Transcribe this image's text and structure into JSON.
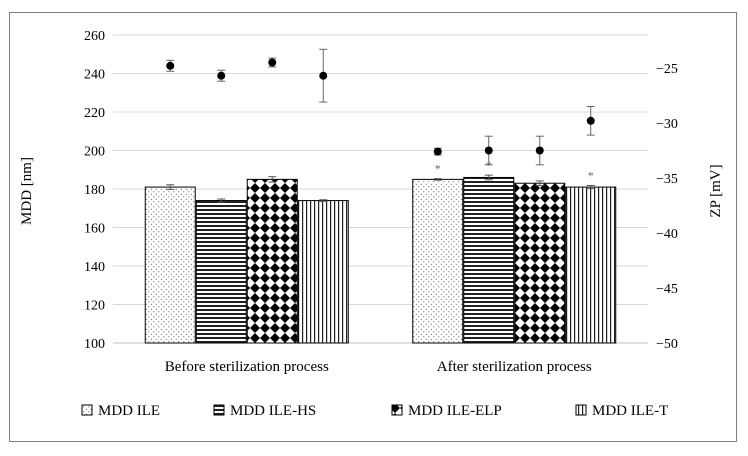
{
  "chart_data": {
    "type": "bar",
    "categories": [
      "Before sterilization process",
      "After sterilization process"
    ],
    "ylabel": "MDD [nm]",
    "y2label": "ZP [mV]",
    "ylim": [
      100,
      260
    ],
    "y_ticks": [
      100,
      120,
      140,
      160,
      180,
      200,
      220,
      240,
      260
    ],
    "y2lim": [
      -50,
      -22
    ],
    "y2_ticks": [
      -50,
      -45,
      -40,
      -35,
      -30,
      -25
    ],
    "y2_tick_labels": [
      "−50",
      "−45",
      "−40",
      "−35",
      "−30",
      "−25"
    ],
    "series": [
      {
        "name": "MDD ILE",
        "pattern": "dots",
        "values": [
          181,
          185
        ],
        "errors": [
          1.2,
          0.4
        ],
        "significance": [
          "",
          "*"
        ]
      },
      {
        "name": "MDD ILE-HS",
        "pattern": "hlines",
        "values": [
          174,
          186
        ],
        "errors": [
          0.8,
          1.2
        ],
        "significance": [
          "",
          "*"
        ]
      },
      {
        "name": "MDD ILE-ELP",
        "pattern": "diamonds",
        "values": [
          185,
          183
        ],
        "errors": [
          1.4,
          1.2
        ],
        "significance": [
          "",
          ""
        ]
      },
      {
        "name": "MDD ILE-T",
        "pattern": "vlines",
        "values": [
          174,
          181
        ],
        "errors": [
          0.4,
          0.8
        ],
        "significance": [
          "",
          "*"
        ]
      }
    ],
    "zp_series": {
      "name": "ZP",
      "values": [
        [
          -24.8,
          -25.7,
          -24.5,
          -25.7
        ],
        [
          -32.6,
          -32.5,
          -32.5,
          -29.8
        ]
      ],
      "errors": [
        [
          0.5,
          0.5,
          0.4,
          2.4
        ],
        [
          0.3,
          1.3,
          1.3,
          1.3
        ]
      ]
    }
  }
}
